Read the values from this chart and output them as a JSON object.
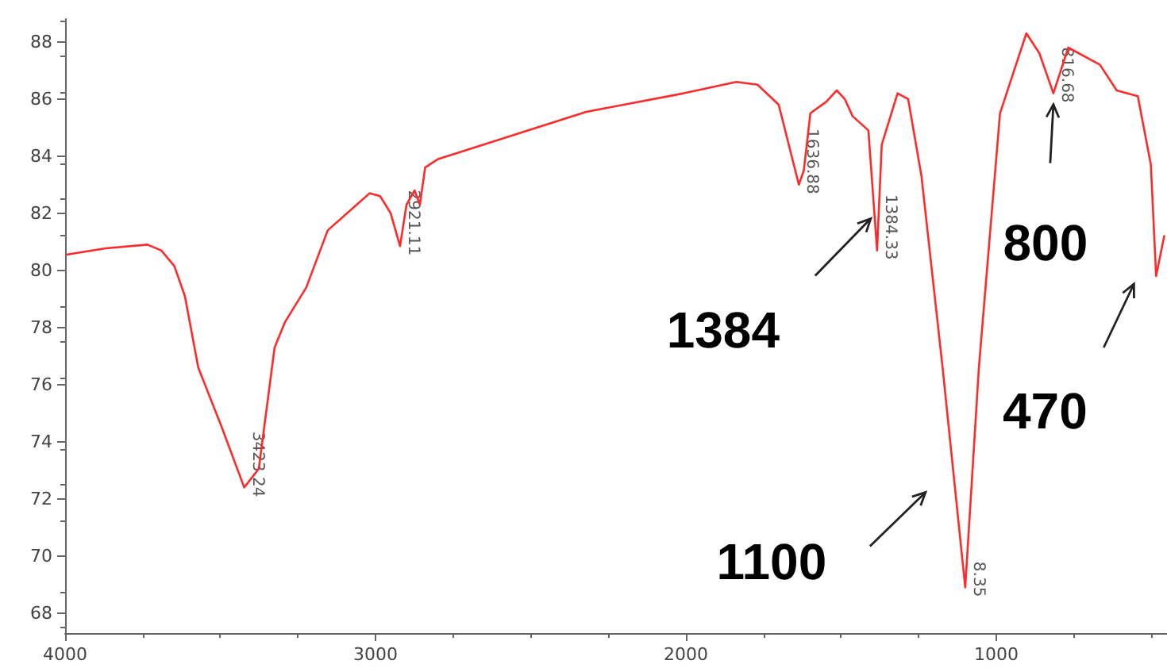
{
  "chart_data": {
    "type": "line",
    "x": [
      3996,
      3869,
      3735,
      3690,
      3648,
      3614,
      3571,
      3495,
      3423,
      3376,
      3325,
      3291,
      3223,
      3154,
      3019,
      2985,
      2951,
      2921,
      2900,
      2874,
      2857,
      2840,
      2798,
      2321,
      2007,
      1837,
      1769,
      1701,
      1636,
      1620,
      1599,
      1548,
      1514,
      1488,
      1463,
      1412,
      1384,
      1369,
      1318,
      1284,
      1241,
      1173,
      1100,
      1056,
      988,
      903,
      861,
      816,
      768,
      666,
      612,
      544,
      502,
      485,
      459
    ],
    "series": [
      {
        "color": "#ff2a2a",
        "values": [
          80.55,
          80.77,
          80.9,
          80.7,
          80.15,
          79.1,
          76.6,
          74.5,
          72.4,
          73.05,
          77.3,
          78.2,
          79.4,
          81.4,
          82.7,
          82.6,
          82.0,
          80.85,
          82.3,
          82.8,
          82.3,
          83.6,
          83.9,
          85.55,
          86.2,
          86.6,
          86.5,
          85.8,
          83.0,
          83.5,
          85.5,
          85.9,
          86.3,
          86.0,
          85.4,
          84.9,
          80.7,
          84.4,
          86.2,
          86.0,
          83.3,
          76.6,
          68.9,
          76.6,
          85.5,
          88.3,
          87.6,
          86.2,
          87.8,
          87.2,
          86.3,
          86.1,
          83.7,
          79.8,
          81.2
        ]
      }
    ],
    "xlim": [
      4000,
      450
    ],
    "xticks": [
      4000,
      3000,
      2000,
      1000
    ],
    "ylim": [
      67.3,
      88.8
    ],
    "yticks": [
      68,
      70,
      72,
      74,
      76,
      78,
      80,
      82,
      84,
      86,
      88
    ],
    "grid": false,
    "marker": "none",
    "line_style": "solid",
    "annotations": [
      {
        "text": "3423.24",
        "x": 3423,
        "y": 72.4
      },
      {
        "text": "2921.11",
        "x": 2921,
        "y": 80.85
      },
      {
        "text": "1636.88",
        "x": 1636,
        "y": 83.0
      },
      {
        "text": "1384.33",
        "x": 1384,
        "y": 80.7
      },
      {
        "text": "8.35",
        "x": 1100,
        "y": 68.9
      },
      {
        "text": "816.68",
        "x": 816,
        "y": 86.2
      },
      {
        "text": "1384",
        "x": 1384,
        "y": 80.7
      },
      {
        "text": "1100",
        "x": 1100,
        "y": 68.9
      },
      {
        "text": "800",
        "x": 816,
        "y": 86.2
      },
      {
        "text": "470",
        "x": 485,
        "y": 79.8
      }
    ]
  }
}
